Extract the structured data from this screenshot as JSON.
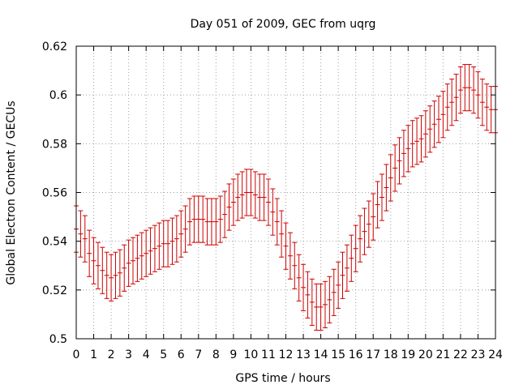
{
  "chart_data": {
    "type": "scatter",
    "title": "Day 051 of 2009, GEC from uqrg",
    "xlabel": "GPS time / hours",
    "ylabel": "Global Electron Content / GECUs",
    "xlim": [
      0,
      24
    ],
    "ylim": [
      0.5,
      0.62
    ],
    "xticks": [
      "0",
      "1",
      "2",
      "3",
      "4",
      "5",
      "6",
      "7",
      "8",
      "9",
      "10",
      "11",
      "12",
      "13",
      "14",
      "15",
      "16",
      "17",
      "18",
      "19",
      "20",
      "21",
      "22",
      "23",
      "24"
    ],
    "yticks": [
      "0.5",
      "0.52",
      "0.54",
      "0.56",
      "0.58",
      "0.6",
      "0.62"
    ],
    "grid": true,
    "color": "#cc0000",
    "series": [
      {
        "name": "GEC",
        "x": [
          0,
          0.25,
          0.5,
          0.75,
          1,
          1.25,
          1.5,
          1.75,
          2,
          2.25,
          2.5,
          2.75,
          3,
          3.25,
          3.5,
          3.75,
          4,
          4.25,
          4.5,
          4.75,
          5,
          5.25,
          5.5,
          5.75,
          6,
          6.25,
          6.5,
          6.75,
          7,
          7.25,
          7.5,
          7.75,
          8,
          8.25,
          8.5,
          8.75,
          9,
          9.25,
          9.5,
          9.75,
          10,
          10.25,
          10.5,
          10.75,
          11,
          11.25,
          11.5,
          11.75,
          12,
          12.25,
          12.5,
          12.75,
          13,
          13.25,
          13.5,
          13.75,
          14,
          14.25,
          14.5,
          14.75,
          15,
          15.25,
          15.5,
          15.75,
          16,
          16.25,
          16.5,
          16.75,
          17,
          17.25,
          17.5,
          17.75,
          18,
          18.25,
          18.5,
          18.75,
          19,
          19.25,
          19.5,
          19.75,
          20,
          20.25,
          20.5,
          20.75,
          21,
          21.25,
          21.5,
          21.75,
          22,
          22.25,
          22.5,
          22.75,
          23,
          23.25,
          23.5,
          23.75,
          24
        ],
        "y": [
          0.545,
          0.543,
          0.541,
          0.535,
          0.532,
          0.53,
          0.528,
          0.526,
          0.525,
          0.526,
          0.527,
          0.529,
          0.531,
          0.532,
          0.533,
          0.534,
          0.535,
          0.536,
          0.537,
          0.538,
          0.539,
          0.539,
          0.54,
          0.541,
          0.543,
          0.545,
          0.548,
          0.549,
          0.549,
          0.549,
          0.548,
          0.548,
          0.548,
          0.549,
          0.551,
          0.554,
          0.556,
          0.558,
          0.559,
          0.56,
          0.56,
          0.559,
          0.558,
          0.558,
          0.556,
          0.552,
          0.548,
          0.543,
          0.538,
          0.534,
          0.53,
          0.525,
          0.521,
          0.518,
          0.515,
          0.513,
          0.513,
          0.514,
          0.516,
          0.519,
          0.522,
          0.526,
          0.529,
          0.533,
          0.537,
          0.541,
          0.544,
          0.547,
          0.55,
          0.555,
          0.558,
          0.562,
          0.566,
          0.57,
          0.573,
          0.576,
          0.578,
          0.58,
          0.581,
          0.582,
          0.584,
          0.586,
          0.588,
          0.59,
          0.592,
          0.595,
          0.597,
          0.599,
          0.602,
          0.603,
          0.603,
          0.602,
          0.6,
          0.597,
          0.595,
          0.594,
          0.594
        ],
        "error": 0.0095
      }
    ]
  }
}
